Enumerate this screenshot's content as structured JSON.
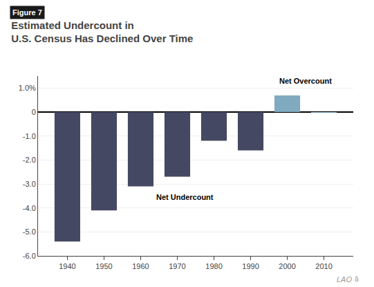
{
  "chart_data": {
    "type": "bar",
    "title": "Estimated Undercount in\nU.S. Census Has Declined Over Time",
    "annotations": [
      "Figure 7",
      "Net Undercount",
      "Net Overcount",
      "LAO",
      "â"
    ],
    "x": [
      1940,
      1950,
      1960,
      1970,
      1980,
      1990,
      2000,
      2010
    ],
    "values": [
      -5.4,
      -4.1,
      -3.1,
      -2.7,
      -1.2,
      -1.6,
      0.69,
      -0.01
    ],
    "colors": [
      "#454862",
      "#454862",
      "#454862",
      "#454862",
      "#454862",
      "#454862",
      "#7faabf",
      "#7faabf"
    ],
    "xlim": [
      1932,
      2018
    ],
    "xticks": [
      1940,
      1950,
      1960,
      1970,
      1980,
      1990,
      2000,
      2010
    ],
    "ylim": [
      -6.0,
      1.5
    ],
    "yticks": [
      {
        "value": -6.0,
        "label": "-6.0"
      },
      {
        "value": -5.0,
        "label": "-5.0"
      },
      {
        "value": -4.0,
        "label": "-4.0"
      },
      {
        "value": -3.0,
        "label": "-3.0"
      },
      {
        "value": -2.0,
        "label": "-2.0"
      },
      {
        "value": -1.0,
        "label": "-1.0"
      },
      0,
      {
        "value": 1.0,
        "label": "1.0%"
      }
    ],
    "grid": true
  }
}
